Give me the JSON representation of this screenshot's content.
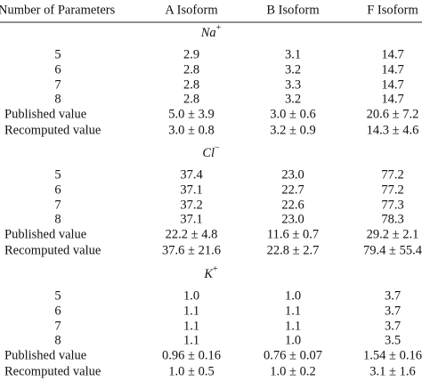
{
  "table": {
    "header": [
      "Number of Parameters",
      "A Isoform",
      "B Isoform",
      "F Isoform"
    ],
    "sections": [
      {
        "ion": {
          "symbol": "Na",
          "charge": "+"
        },
        "rows": [
          [
            "5",
            "2.9",
            "3.1",
            "14.7"
          ],
          [
            "6",
            "2.8",
            "3.2",
            "14.7"
          ],
          [
            "7",
            "2.8",
            "3.3",
            "14.7"
          ],
          [
            "8",
            "2.8",
            "3.2",
            "14.7"
          ],
          [
            "Published value",
            "5.0 ± 3.9",
            "3.0 ± 0.6",
            "20.6 ± 7.2"
          ],
          [
            "Recomputed value",
            "3.0 ± 0.8",
            "3.2 ± 0.9",
            "14.3 ± 4.6"
          ]
        ]
      },
      {
        "ion": {
          "symbol": "Cl",
          "charge": "−"
        },
        "rows": [
          [
            "5",
            "37.4",
            "23.0",
            "77.2"
          ],
          [
            "6",
            "37.1",
            "22.7",
            "77.2"
          ],
          [
            "7",
            "37.2",
            "22.6",
            "77.3"
          ],
          [
            "8",
            "37.1",
            "23.0",
            "78.3"
          ],
          [
            "Published value",
            "22.2 ± 4.8",
            "11.6 ± 0.7",
            "29.2 ± 2.1"
          ],
          [
            "Recomputed value",
            "37.6 ± 21.6",
            "22.8 ± 2.7",
            "79.4 ± 55.4"
          ]
        ]
      },
      {
        "ion": {
          "symbol": "K",
          "charge": "+"
        },
        "rows": [
          [
            "5",
            "1.0",
            "1.0",
            "3.7"
          ],
          [
            "6",
            "1.1",
            "1.1",
            "3.7"
          ],
          [
            "7",
            "1.1",
            "1.1",
            "3.7"
          ],
          [
            "8",
            "1.1",
            "1.0",
            "3.5"
          ],
          [
            "Published value",
            "0.96 ± 0.16",
            "0.76 ± 0.07",
            "1.54 ± 0.16"
          ],
          [
            "Recomputed value",
            "1.0 ± 0.5",
            "1.0 ± 0.2",
            "3.1 ± 1.6"
          ]
        ]
      }
    ]
  }
}
